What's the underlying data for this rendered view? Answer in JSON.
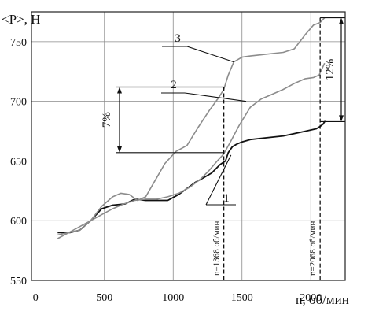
{
  "chart_data": {
    "type": "line",
    "ylabel": "<P>, Н",
    "xlabel": "n, об/мин",
    "xlim": [
      0,
      2250
    ],
    "ylim": [
      550,
      775
    ],
    "x_ticks": [
      0,
      500,
      1000,
      1500,
      2000
    ],
    "y_ticks": [
      550,
      600,
      650,
      700,
      750
    ],
    "grid": true,
    "series": [
      {
        "name": "1",
        "color": "#111111",
        "x": [
          160,
          250,
          320,
          400,
          480,
          560,
          650,
          720,
          800,
          880,
          960,
          1040,
          1100,
          1160,
          1220,
          1280,
          1340,
          1380,
          1400,
          1430,
          1460,
          1500,
          1560,
          1640,
          1720,
          1800,
          1880,
          1960,
          2040,
          2068,
          2090,
          2100,
          2110
        ],
        "y": [
          590,
          590,
          592,
          600,
          610,
          613,
          614,
          618,
          617,
          617,
          617,
          622,
          627,
          632,
          636,
          640,
          647,
          650,
          657,
          662,
          664,
          666,
          668,
          669,
          670,
          671,
          673,
          675,
          677,
          679,
          681,
          683,
          683
        ]
      },
      {
        "name": "2",
        "color": "#8c8c8c",
        "x": [
          160,
          240,
          320,
          400,
          480,
          560,
          640,
          720,
          800,
          880,
          960,
          1040,
          1120,
          1200,
          1260,
          1320,
          1368,
          1420,
          1480,
          1560,
          1640,
          1720,
          1800,
          1880,
          1960,
          2020,
          2060,
          2100
        ],
        "y": [
          585,
          590,
          595,
          600,
          605,
          610,
          614,
          617,
          618,
          618,
          620,
          623,
          628,
          635,
          642,
          650,
          656,
          667,
          680,
          695,
          702,
          706,
          710,
          715,
          719,
          720,
          722,
          732
        ]
      },
      {
        "name": "3",
        "color": "#8c8c8c",
        "x": [
          160,
          240,
          320,
          400,
          480,
          560,
          620,
          680,
          740,
          800,
          860,
          940,
          1020,
          1100,
          1180,
          1260,
          1330,
          1368,
          1400,
          1440,
          1500,
          1560,
          1640,
          1720,
          1800,
          1880,
          1960,
          2020,
          2068,
          2100
        ],
        "y": [
          588,
          590,
          592,
          600,
          612,
          620,
          623,
          622,
          617,
          620,
          632,
          648,
          658,
          663,
          678,
          692,
          703,
          710,
          722,
          733,
          737,
          738,
          739,
          740,
          741,
          744,
          756,
          764,
          766,
          770
        ]
      }
    ],
    "markers": [
      {
        "x": 1368,
        "label": "n=1368 об/мин"
      },
      {
        "x": 2068,
        "label": "n=2068 об/мин"
      }
    ],
    "annotations": [
      {
        "text": "7%",
        "from": 657,
        "to": 712,
        "x_level": 750
      },
      {
        "text": "12%",
        "from": 683,
        "to": 770,
        "x_level": 2680
      }
    ],
    "curve_labels": [
      {
        "text": "1",
        "series": 0,
        "attach_x": 1420,
        "attach_y": 655
      },
      {
        "text": "2",
        "series": 1,
        "attach_x": 1530,
        "attach_y": 700
      },
      {
        "text": "3",
        "series": 2,
        "attach_x": 1440,
        "attach_y": 733
      }
    ]
  }
}
